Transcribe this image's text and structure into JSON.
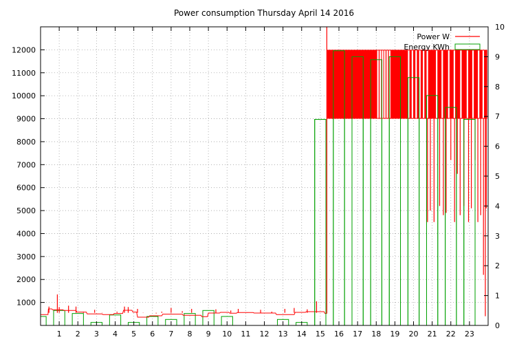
{
  "chart_data": {
    "type": "line",
    "title": "Power consumption Thursday April 14 2016",
    "xlabel": "",
    "ylabel": "",
    "grid": true,
    "legend_position": "top-right",
    "xlim": [
      0,
      24
    ],
    "ylim": [
      0,
      13000
    ],
    "y2lim": [
      0,
      10
    ],
    "x_ticks": [
      1,
      2,
      3,
      4,
      5,
      6,
      7,
      8,
      9,
      10,
      11,
      12,
      13,
      14,
      15,
      16,
      17,
      18,
      19,
      20,
      21,
      22,
      23
    ],
    "y_ticks": [
      1000,
      2000,
      3000,
      4000,
      5000,
      6000,
      7000,
      8000,
      9000,
      10000,
      11000,
      12000
    ],
    "y2_ticks": [
      0,
      1,
      2,
      3,
      4,
      5,
      6,
      7,
      8,
      9,
      10
    ],
    "series": [
      {
        "name": "Power W",
        "axis": "left",
        "color": "#ff0000",
        "style": "step",
        "baseline": [
          [
            0,
            470
          ],
          [
            0.4,
            470
          ],
          [
            0.42,
            720
          ],
          [
            0.6,
            720
          ],
          [
            0.65,
            680
          ],
          [
            1.2,
            680
          ],
          [
            1.25,
            650
          ],
          [
            1.9,
            650
          ],
          [
            1.95,
            580
          ],
          [
            2.45,
            580
          ],
          [
            2.5,
            500
          ],
          [
            3.3,
            500
          ],
          [
            3.35,
            470
          ],
          [
            3.9,
            470
          ],
          [
            3.95,
            520
          ],
          [
            4.4,
            520
          ],
          [
            4.45,
            660
          ],
          [
            4.9,
            660
          ],
          [
            4.95,
            580
          ],
          [
            5.15,
            580
          ],
          [
            5.2,
            360
          ],
          [
            5.8,
            360
          ],
          [
            5.85,
            420
          ],
          [
            6.5,
            420
          ],
          [
            6.55,
            490
          ],
          [
            7.6,
            490
          ],
          [
            7.65,
            440
          ],
          [
            8.6,
            440
          ],
          [
            8.65,
            380
          ],
          [
            8.95,
            380
          ],
          [
            9,
            540
          ],
          [
            9.6,
            540
          ],
          [
            9.65,
            570
          ],
          [
            10.1,
            570
          ],
          [
            10.15,
            530
          ],
          [
            10.5,
            530
          ],
          [
            10.55,
            560
          ],
          [
            11.4,
            560
          ],
          [
            11.45,
            540
          ],
          [
            12.6,
            540
          ],
          [
            12.65,
            470
          ],
          [
            13.6,
            470
          ],
          [
            13.65,
            570
          ],
          [
            14.2,
            570
          ],
          [
            14.25,
            600
          ],
          [
            15.2,
            600
          ],
          [
            15.25,
            520
          ],
          [
            15.35,
            520
          ]
        ],
        "spikes": [
          [
            0.45,
            820
          ],
          [
            0.9,
            1350
          ],
          [
            1,
            800
          ],
          [
            1.5,
            860
          ],
          [
            1.9,
            820
          ],
          [
            2.3,
            600
          ],
          [
            2.9,
            680
          ],
          [
            3.3,
            560
          ],
          [
            4.1,
            600
          ],
          [
            4.5,
            820
          ],
          [
            4.7,
            800
          ],
          [
            5.2,
            720
          ],
          [
            5.5,
            560
          ],
          [
            6.2,
            520
          ],
          [
            6.5,
            600
          ],
          [
            7,
            760
          ],
          [
            7.6,
            620
          ],
          [
            8.1,
            720
          ],
          [
            8.7,
            560
          ],
          [
            9,
            520
          ],
          [
            9.4,
            700
          ],
          [
            10.2,
            650
          ],
          [
            10.6,
            720
          ],
          [
            11.1,
            560
          ],
          [
            11.8,
            680
          ],
          [
            12.4,
            600
          ],
          [
            13.1,
            720
          ],
          [
            13.6,
            760
          ],
          [
            14.3,
            700
          ],
          [
            14.8,
            1050
          ]
        ],
        "high_region": {
          "x_start": 15.35,
          "x_end": 23.95,
          "y_low": 9000,
          "y_high": 12000
        },
        "late_drops": [
          [
            20.75,
            4500
          ],
          [
            20.9,
            5000
          ],
          [
            21.1,
            4500
          ],
          [
            21.4,
            5200
          ],
          [
            21.6,
            4800
          ],
          [
            21.75,
            4900
          ],
          [
            22.0,
            7200
          ],
          [
            22.2,
            4500
          ],
          [
            22.35,
            6600
          ],
          [
            22.5,
            4800
          ],
          [
            22.7,
            5200
          ],
          [
            22.95,
            4500
          ],
          [
            23.1,
            5100
          ],
          [
            23.3,
            7200
          ],
          [
            23.45,
            4500
          ],
          [
            23.6,
            4800
          ],
          [
            23.75,
            2200
          ],
          [
            23.85,
            400
          ],
          [
            23.9,
            5100
          ]
        ]
      },
      {
        "name": "Energy KWh",
        "axis": "right",
        "color": "#00a000",
        "style": "boxes",
        "hours": [
          0,
          1,
          2,
          3,
          4,
          5,
          6,
          7,
          8,
          9,
          10,
          11,
          12,
          13,
          14,
          15,
          16,
          17,
          18,
          19,
          20,
          21,
          22,
          23
        ],
        "values": [
          0.3,
          0.5,
          0.4,
          0.1,
          0.35,
          0.1,
          0.3,
          0.2,
          0.4,
          0.5,
          0.3,
          0,
          0,
          0.2,
          0.1,
          6.9,
          9.2,
          9.0,
          8.9,
          9.0,
          8.3,
          7.7,
          7.3,
          6.9
        ]
      }
    ]
  }
}
